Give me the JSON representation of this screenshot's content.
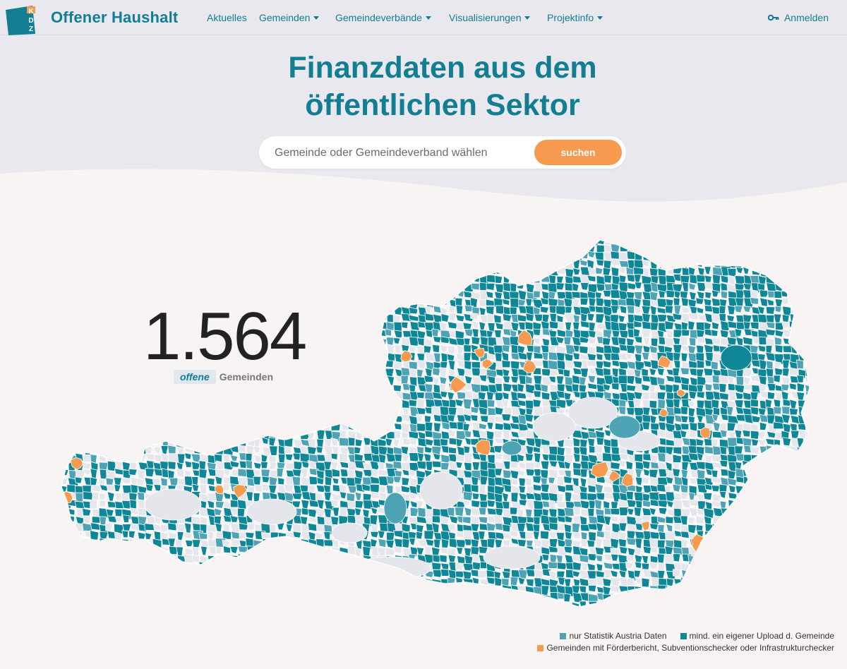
{
  "brand": {
    "name": "Offener Haushalt",
    "logo_letters": [
      "K",
      "D",
      "Z"
    ]
  },
  "nav": [
    {
      "label": "Aktuelles",
      "dropdown": false
    },
    {
      "label": "Gemeinden",
      "dropdown": true
    },
    {
      "label": "Gemeindeverbände",
      "dropdown": true
    },
    {
      "label": "Visualisierungen",
      "dropdown": true
    },
    {
      "label": "Projektinfo",
      "dropdown": true
    }
  ],
  "login_label": "Anmelden",
  "hero": {
    "title_line1": "Finanzdaten aus dem",
    "title_line2": "öffentlichen Sektor"
  },
  "search": {
    "placeholder": "Gemeinde oder Gemeindeverband wählen",
    "button_label": "suchen"
  },
  "counter": {
    "value": "1.564",
    "tag": "offene",
    "label": "Gemeinden"
  },
  "legend": [
    {
      "label": "nur Statistik Austria Daten",
      "color": "#4ea3b4"
    },
    {
      "label": "mind. ein eigener Upload d. Gemeinde",
      "color": "#0f8797"
    },
    {
      "label": "Gemeinden mit Förderbericht, Subventionschecker oder Infrastrukturchecker",
      "color": "#f59a4f"
    }
  ],
  "colors": {
    "brand": "#137e91",
    "accent": "#f59a4f",
    "teal_dark": "#0f8797",
    "teal_light": "#4ea3b4",
    "no_data": "#e5e5ec",
    "header_bg": "#e8e8ee"
  }
}
